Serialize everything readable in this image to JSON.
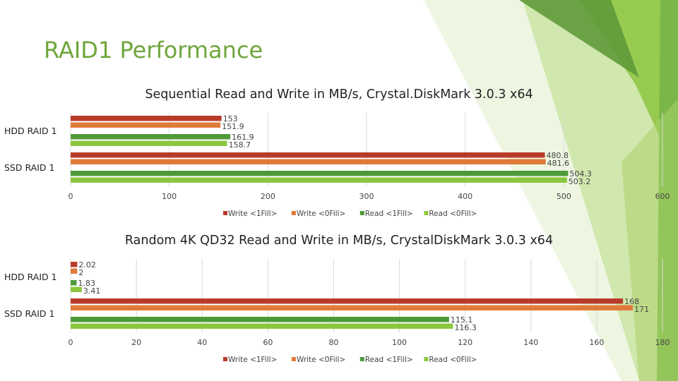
{
  "slide": {
    "title": "RAID1 Performance"
  },
  "colors": {
    "title": "#6fa63c",
    "write_1fill": "#b83b2a",
    "write_0fill": "#e07a3a",
    "read_1fill": "#4e9a3a",
    "read_0fill": "#8cc63f"
  },
  "chart_data": [
    {
      "type": "bar",
      "orientation": "horizontal",
      "title": "Sequential Read and Write in MB/s, Crystal.DiskMark 3.0.3 x64",
      "categories": [
        "HDD RAID 1",
        "SSD RAID 1"
      ],
      "series": [
        {
          "name": "Write <1Fill>",
          "values": [
            153,
            480.8
          ],
          "labels": [
            "153",
            "480.8"
          ]
        },
        {
          "name": "Write <0Fill>",
          "values": [
            151.9,
            481.6
          ],
          "labels": [
            "151.9",
            "481.6"
          ]
        },
        {
          "name": "Read <1Fill>",
          "values": [
            161.9,
            504.3
          ],
          "labels": [
            "161.9",
            "504.3"
          ]
        },
        {
          "name": "Read <0Fill>",
          "values": [
            158.7,
            503.2
          ],
          "labels": [
            "158.7",
            "503.2"
          ]
        }
      ],
      "xlim": [
        0,
        600
      ],
      "ticks": [
        0,
        100,
        200,
        300,
        400,
        500,
        600
      ],
      "grid": true,
      "legend": "bottom"
    },
    {
      "type": "bar",
      "orientation": "horizontal",
      "title": "Random 4K QD32 Read and Write in MB/s, CrystalDiskMark 3.0.3 x64",
      "categories": [
        "HDD RAID 1",
        "SSD RAID 1"
      ],
      "series": [
        {
          "name": "Write <1Fill>",
          "values": [
            2.02,
            168
          ],
          "labels": [
            "2.02",
            "168"
          ]
        },
        {
          "name": "Write <0Fill>",
          "values": [
            2,
            171
          ],
          "labels": [
            "2",
            "171"
          ]
        },
        {
          "name": "Read <1Fill>",
          "values": [
            1.83,
            115.1
          ],
          "labels": [
            "1.83",
            "115.1"
          ]
        },
        {
          "name": "Read <0Fill>",
          "values": [
            3.41,
            116.3
          ],
          "labels": [
            "3.41",
            "116.3"
          ]
        }
      ],
      "xlim": [
        0,
        180
      ],
      "ticks": [
        0,
        20,
        40,
        60,
        80,
        100,
        120,
        140,
        160,
        180
      ],
      "grid": true,
      "legend": "bottom"
    }
  ]
}
